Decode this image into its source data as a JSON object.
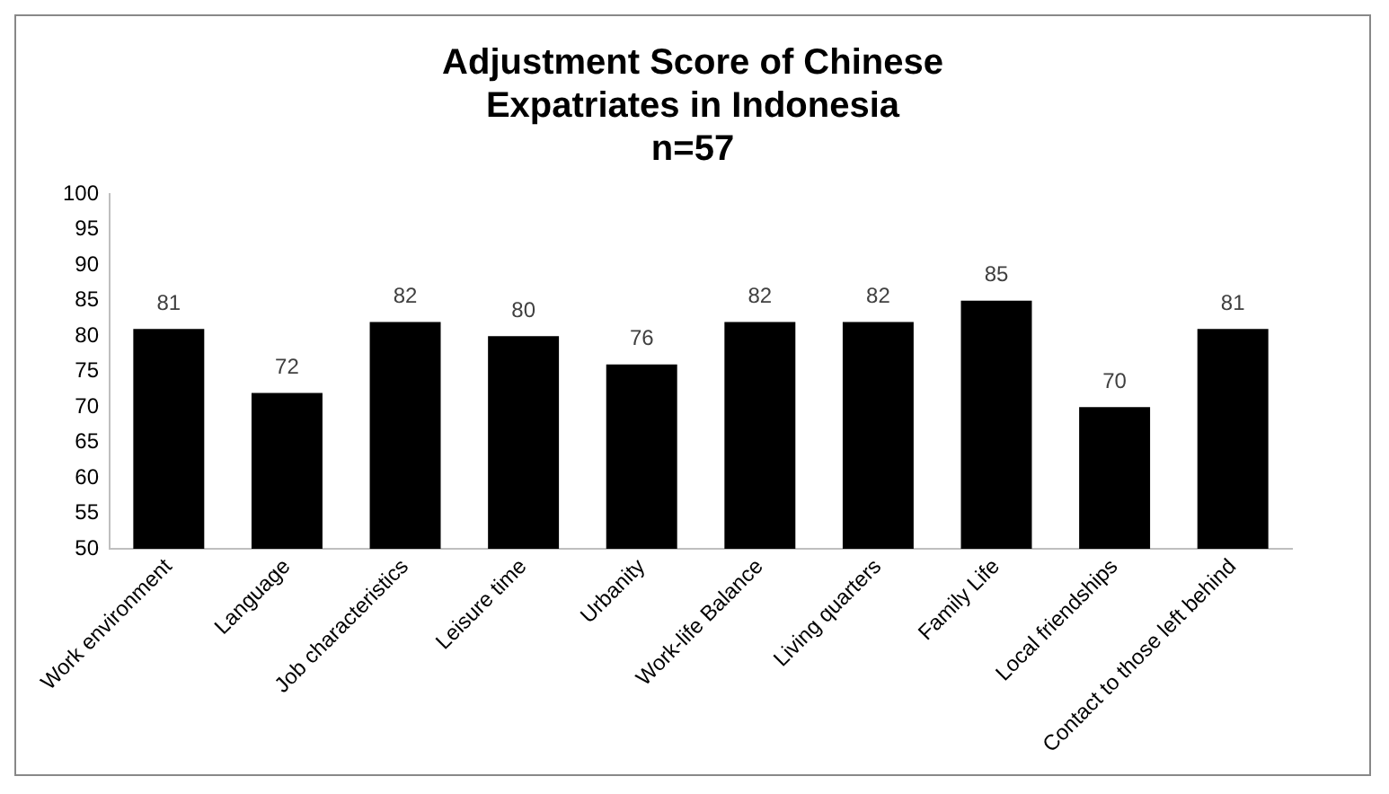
{
  "chart_data": {
    "type": "bar",
    "title": "Adjustment Score of Chinese Expatriates in Indonesia",
    "subtitle": "n=57",
    "categories": [
      "Work environment",
      "Language",
      "Job characteristics",
      "Leisure time",
      "Urbanity",
      "Work-life Balance",
      "Living quarters",
      "Family Life",
      "Local friendships",
      "Contact to those left behind"
    ],
    "values": [
      81,
      72,
      82,
      80,
      76,
      82,
      82,
      85,
      70,
      81
    ],
    "color": "#000000",
    "ylim": [
      50,
      100
    ],
    "yticks": [
      50,
      55,
      60,
      65,
      70,
      75,
      80,
      85,
      90,
      95,
      100
    ],
    "grid": false,
    "legend": false,
    "data_labels": true
  }
}
